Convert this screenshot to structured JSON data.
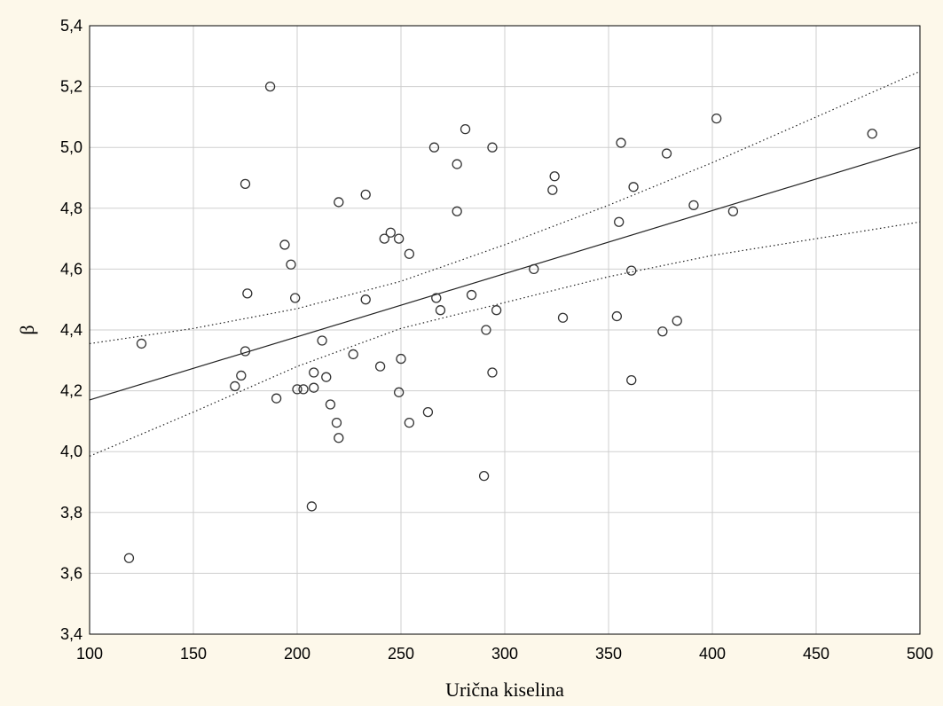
{
  "chart_data": {
    "type": "scatter",
    "title": "",
    "xlabel": "Urična kiselina",
    "ylabel": "β",
    "xlim": [
      100,
      500
    ],
    "ylim": [
      3.4,
      5.4
    ],
    "xticks": [
      100,
      150,
      200,
      250,
      300,
      350,
      400,
      450,
      500
    ],
    "xtick_labels": [
      "100",
      "150",
      "200",
      "250",
      "300",
      "350",
      "400",
      "450",
      "500"
    ],
    "yticks": [
      3.4,
      3.6,
      3.8,
      4.0,
      4.2,
      4.4,
      4.6,
      4.8,
      5.0,
      5.2,
      5.4
    ],
    "ytick_labels": [
      "3,4",
      "3,6",
      "3,8",
      "4,0",
      "4,2",
      "4,4",
      "4,6",
      "4,8",
      "5,0",
      "5,2",
      "5,4"
    ],
    "grid": true,
    "points": [
      [
        119,
        3.65
      ],
      [
        125,
        4.355
      ],
      [
        170,
        4.215
      ],
      [
        173,
        4.25
      ],
      [
        175,
        4.88
      ],
      [
        175,
        4.33
      ],
      [
        176,
        4.52
      ],
      [
        187,
        5.2
      ],
      [
        190,
        4.175
      ],
      [
        194,
        4.68
      ],
      [
        197,
        4.615
      ],
      [
        199,
        4.505
      ],
      [
        200,
        4.205
      ],
      [
        203,
        4.205
      ],
      [
        207,
        3.82
      ],
      [
        208,
        4.26
      ],
      [
        208,
        4.21
      ],
      [
        212,
        4.365
      ],
      [
        214,
        4.245
      ],
      [
        216,
        4.155
      ],
      [
        219,
        4.095
      ],
      [
        220,
        4.045
      ],
      [
        220,
        4.82
      ],
      [
        227,
        4.32
      ],
      [
        233,
        4.845
      ],
      [
        233,
        4.5
      ],
      [
        240,
        4.28
      ],
      [
        242,
        4.7
      ],
      [
        245,
        4.72
      ],
      [
        249,
        4.7
      ],
      [
        249,
        4.195
      ],
      [
        250,
        4.305
      ],
      [
        254,
        4.65
      ],
      [
        254,
        4.095
      ],
      [
        263,
        4.13
      ],
      [
        266,
        5.0
      ],
      [
        267,
        4.505
      ],
      [
        269,
        4.465
      ],
      [
        277,
        4.945
      ],
      [
        277,
        4.79
      ],
      [
        281,
        5.06
      ],
      [
        284,
        4.515
      ],
      [
        290,
        3.92
      ],
      [
        291,
        4.4
      ],
      [
        294,
        5.0
      ],
      [
        294,
        4.26
      ],
      [
        296,
        4.465
      ],
      [
        314,
        4.6
      ],
      [
        323,
        4.86
      ],
      [
        324,
        4.905
      ],
      [
        328,
        4.44
      ],
      [
        354,
        4.445
      ],
      [
        355,
        4.755
      ],
      [
        356,
        5.015
      ],
      [
        361,
        4.595
      ],
      [
        361,
        4.235
      ],
      [
        362,
        4.87
      ],
      [
        376,
        4.395
      ],
      [
        378,
        4.98
      ],
      [
        383,
        4.43
      ],
      [
        391,
        4.81
      ],
      [
        402,
        5.095
      ],
      [
        410,
        4.79
      ],
      [
        477,
        5.045
      ]
    ],
    "fit_line": {
      "x": [
        100,
        500
      ],
      "y": [
        4.17,
        5.0
      ]
    },
    "confidence_upper": {
      "x": [
        100,
        150,
        200,
        250,
        300,
        350,
        400,
        450,
        500
      ],
      "y": [
        4.355,
        4.405,
        4.47,
        4.56,
        4.68,
        4.81,
        4.95,
        5.1,
        5.25
      ]
    },
    "confidence_lower": {
      "x": [
        100,
        150,
        200,
        250,
        300,
        350,
        400,
        450,
        500
      ],
      "y": [
        3.985,
        4.13,
        4.28,
        4.405,
        4.49,
        4.575,
        4.645,
        4.7,
        4.755
      ]
    },
    "colors": {
      "background": "#fdf8ea",
      "plot_area": "#ffffff",
      "marks": "#333333",
      "grid": "#cfcfcf"
    }
  }
}
